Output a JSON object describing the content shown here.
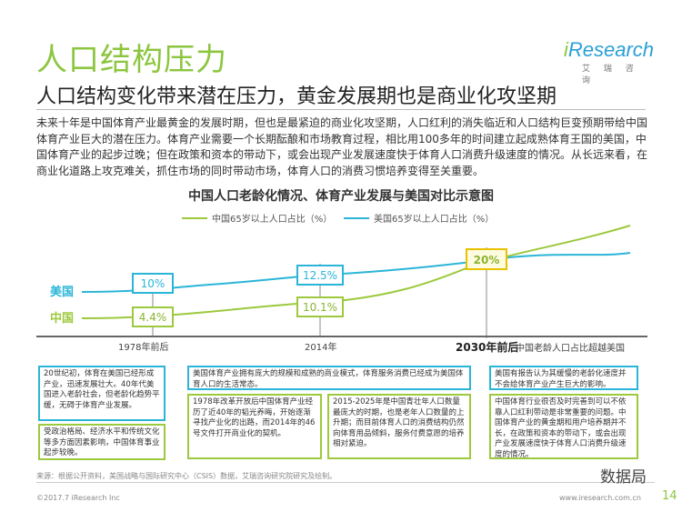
{
  "header": {
    "title": "人口结构压力",
    "subtitle": "人口结构变化带来潜在压力，黄金发展期也是商业化攻坚期",
    "logo_name_prefix": "i",
    "logo_name": "Research",
    "logo_cn": "艾 瑞 咨 询"
  },
  "intro": "未来十年是中国体育产业最黄金的发展时期，但也是最紧迫的商业化攻坚期，人口红利的消失临近和人口结构巨变预期带给中国体育产业巨大的潜在压力。体育产业需要一个长期酝酿和市场教育过程，相比用100多年的时间建立起成熟体育王国的美国，中国体育产业的起步过晚；但在政策和资本的带动下，或会出现产业发展速度快于体育人口消费升级速度的情况。从长远来看，在商业化道路上攻克难关，抓住市场的同时带动市场，体育人口的消费习惯培养变得至关重要。",
  "chart_data": {
    "type": "line",
    "title": "中国人口老龄化情况、体育产业发展与美国对比示意图",
    "x": [
      "1978年前后",
      "2014年",
      "2030年前后"
    ],
    "series": [
      {
        "name": "中国65岁以上人口占比（%）",
        "short": "中国",
        "color": "#9cc93d",
        "values": [
          4.4,
          10.1,
          20
        ],
        "labels": [
          "4.4%",
          "10.1%",
          "20%"
        ]
      },
      {
        "name": "美国65岁以上人口占比（%）",
        "short": "美国",
        "color": "#2bb5d8",
        "values": [
          10,
          12.5,
          null
        ],
        "labels": [
          "10%",
          "12.5%",
          null
        ]
      }
    ],
    "axis_labels": [
      "1978年前后",
      "2014年",
      "2030年前后"
    ],
    "annotation_2030": "中国老龄人口占比超越美国"
  },
  "boxes": {
    "us_1978": "20世纪初，体育在美国已经形成产业，迅速发展壮大。40年代美国进入老龄社会，但老龄化趋势平缓，无碍于体育产业发展。",
    "cn_1978": "受政治格局、经济水平和传统文化等多方面因素影响，中国体育事业起步较晚。",
    "us_2014": "美国体育产业拥有庞大的规模和成熟的商业模式，体育服务消费已经成为美国体育人口的生活常态。",
    "cn_2014_a": "1978年改革开放后中国体育产业经历了近40年的韬光养晦，开始逐渐寻找产业化的出路，而2014年的46号文件打开商业化的契机。",
    "cn_2014_b": "2015-2025年是中国青壮年人口数量最庞大的时期，也是老年人口数量的上升期；而目前体育人口的消费结构仍然向体育用品倾斜，服务付费意愿的培养相对紧迫。",
    "us_2030": "美国有报告认为其缓慢的老龄化速度并不会给体育产业产生巨大的影响。",
    "cn_2030": "中国体育行业很否及时完善到可以不依靠人口红利带动是非常重要的问题。中国体育产业的黄金期和用户培养期并不长，在政策和资本的带动下，或会出现产业发展速度快于体育人口消费升级速度的情况。"
  },
  "footer": {
    "source": "来源：根据公开资料，美国战略与国际研究中心（CSIS）数据，艾瑞咨询研究院研究及绘制。",
    "copyright": "©2017.7 iResearch Inc",
    "website": "www.iresearch.com.cn",
    "page": "14",
    "watermark": "数据局"
  }
}
